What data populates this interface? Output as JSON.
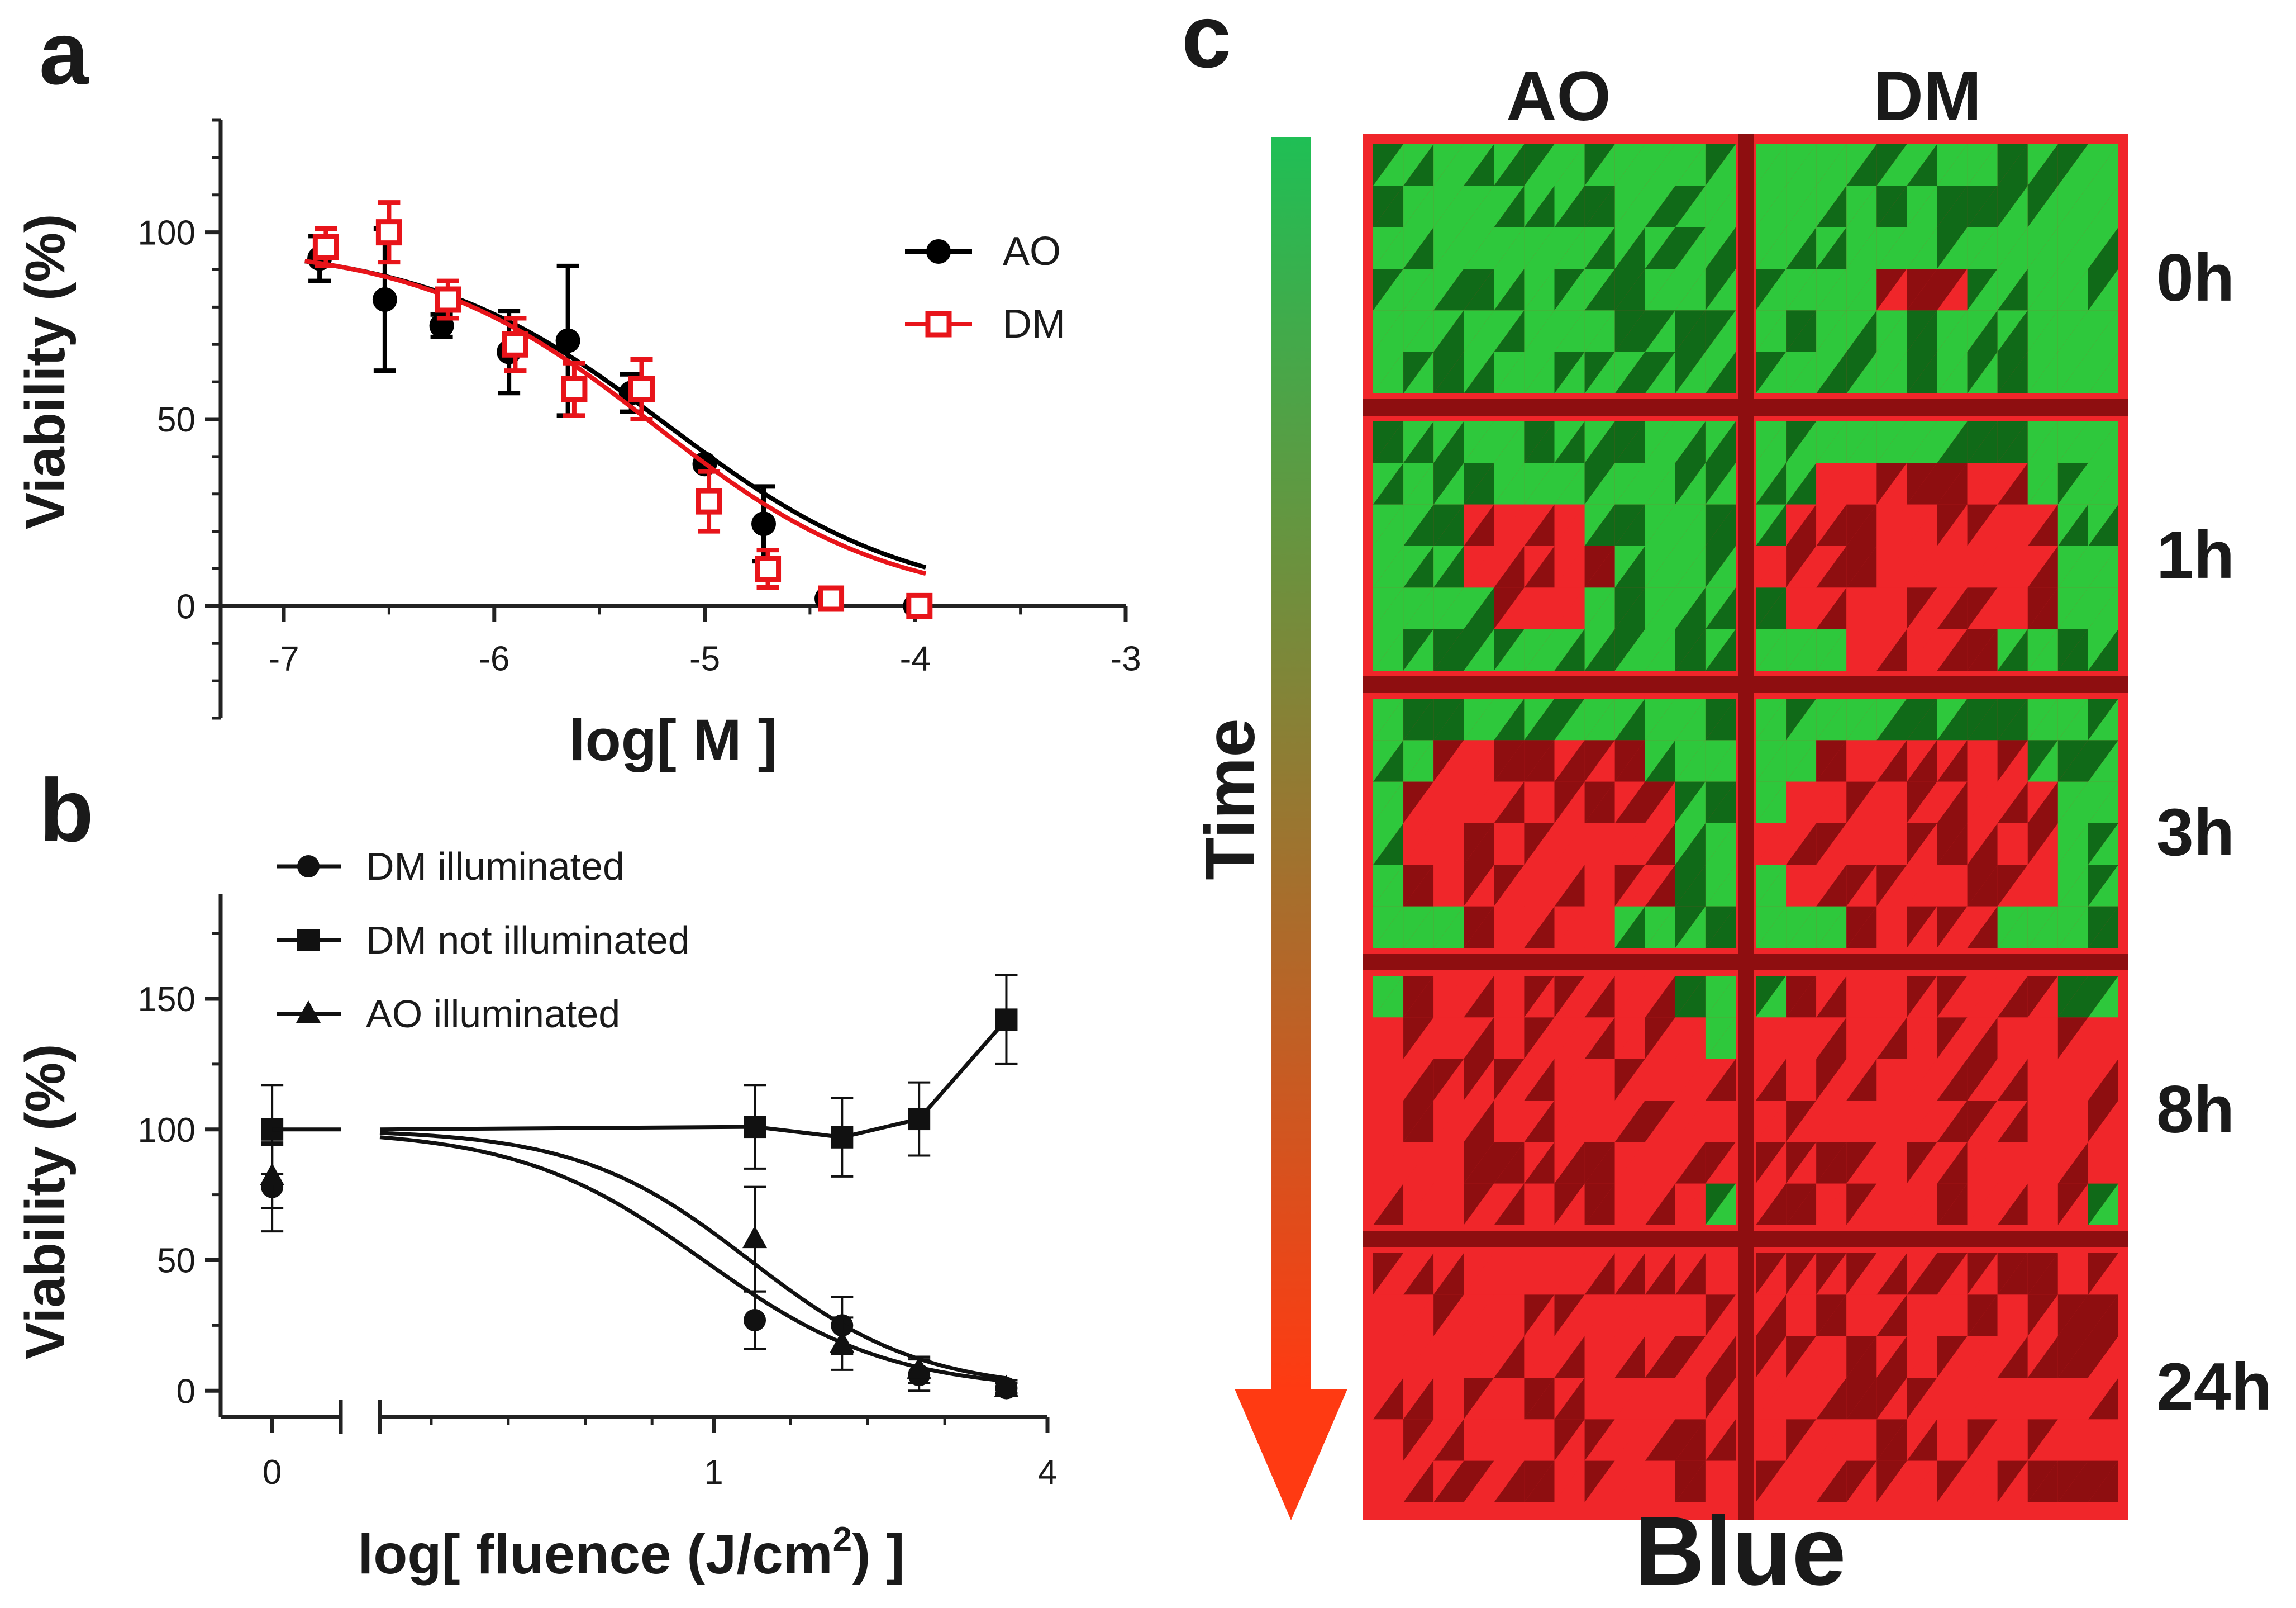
{
  "panel_letters": {
    "a": "a",
    "b": "b",
    "c": "c"
  },
  "chart_data": [
    {
      "type": "scatter",
      "panel": "a",
      "xlabel": "log[ M ]",
      "ylabel": "Viability (%)",
      "xlim": [
        -7.3,
        -3
      ],
      "ylim": [
        -30,
        130
      ],
      "xticks": [
        -7,
        -6,
        -5,
        -4,
        -3
      ],
      "yticks": [
        0,
        50,
        100
      ],
      "legend_position": "top-right",
      "series": [
        {
          "name": "AO",
          "marker": "filled-circle",
          "color": "#000000",
          "x": [
            -6.83,
            -6.52,
            -6.25,
            -5.93,
            -5.65,
            -5.35,
            -5.0,
            -4.72,
            -4.42,
            -4.0
          ],
          "y": [
            93,
            82,
            75,
            68,
            71,
            57,
            38,
            22,
            2,
            0
          ],
          "err": [
            6,
            19,
            3,
            11,
            20,
            5,
            1,
            10,
            1,
            0
          ],
          "fit": {
            "top": 97,
            "bottom": 0,
            "logIC50": -5.18,
            "hill": 0.75
          }
        },
        {
          "name": "DM",
          "marker": "open-square",
          "color": "#e8141a",
          "x": [
            -6.8,
            -6.5,
            -6.22,
            -5.9,
            -5.62,
            -5.3,
            -4.98,
            -4.7,
            -4.4,
            -3.98
          ],
          "y": [
            96,
            100,
            82,
            70,
            58,
            58,
            28,
            10,
            2,
            0
          ],
          "err": [
            5,
            8,
            5,
            7,
            7,
            8,
            8,
            5,
            2,
            1
          ],
          "fit": {
            "top": 97,
            "bottom": 0,
            "logIC50": -5.24,
            "hill": 0.78
          }
        }
      ]
    },
    {
      "type": "scatter",
      "panel": "b",
      "xlabel_main": "log[ fluence (J/cm",
      "xlabel_sup": "2",
      "xlabel_end": ") ]",
      "ylabel": "Viability (%)",
      "xlim_broken_left": [
        -0.15,
        0.2
      ],
      "xlim_right": [
        0.35,
        1.65
      ],
      "ylim": [
        -10,
        190
      ],
      "xtick_labels": [
        "0",
        "1",
        "4"
      ],
      "yticks": [
        0,
        50,
        100,
        150
      ],
      "legend_position": "top-left",
      "series": [
        {
          "name": "DM illuminated",
          "marker": "filled-circle",
          "x": [
            0,
            1.08,
            1.25,
            1.4,
            1.57
          ],
          "y": [
            78,
            27,
            25,
            6,
            1
          ],
          "err": [
            17,
            11,
            11,
            6,
            3
          ],
          "fit": {
            "top": 100,
            "bottom": 0,
            "logEC50": 0.98,
            "hill": 2.4
          }
        },
        {
          "name": "DM not illuminated",
          "marker": "filled-square",
          "x": [
            0,
            1.08,
            1.25,
            1.4,
            1.57
          ],
          "y": [
            100,
            101,
            97,
            104,
            142
          ],
          "err": [
            17,
            16,
            15,
            14,
            17
          ]
        },
        {
          "name": "AO illuminated",
          "marker": "filled-triangle",
          "x": [
            0,
            1.08,
            1.25,
            1.4,
            1.57
          ],
          "y": [
            82,
            58,
            18,
            8,
            1
          ],
          "err": [
            12,
            20,
            10,
            5,
            2
          ],
          "fit": {
            "top": 100,
            "bottom": 0,
            "logEC50": 1.07,
            "hill": 2.6
          }
        }
      ]
    }
  ],
  "panel_c": {
    "column_headers": [
      "AO",
      "DM"
    ],
    "row_labels": [
      "0h",
      "1h",
      "3h",
      "8h",
      "24h"
    ],
    "arrow_label": "Time",
    "footer_label": "Blue",
    "colors": {
      "live_green": "#2ec83c",
      "dark_green": "#106a18",
      "dead_red": "#f0262a",
      "dark_red": "#8e0e10",
      "arrow_top": "#1fbf55",
      "arrow_bottom": "#ff3a12"
    },
    "cells": [
      [
        {
          "red_fraction": 0.0
        },
        {
          "red_fraction": 0.04
        }
      ],
      [
        {
          "red_fraction": 0.12
        },
        {
          "red_fraction": 0.45
        }
      ],
      [
        {
          "red_fraction": 0.42
        },
        {
          "red_fraction": 0.45
        }
      ],
      [
        {
          "red_fraction": 0.88
        },
        {
          "red_fraction": 0.95
        }
      ],
      [
        {
          "red_fraction": 1.0
        },
        {
          "red_fraction": 1.0
        }
      ]
    ]
  }
}
